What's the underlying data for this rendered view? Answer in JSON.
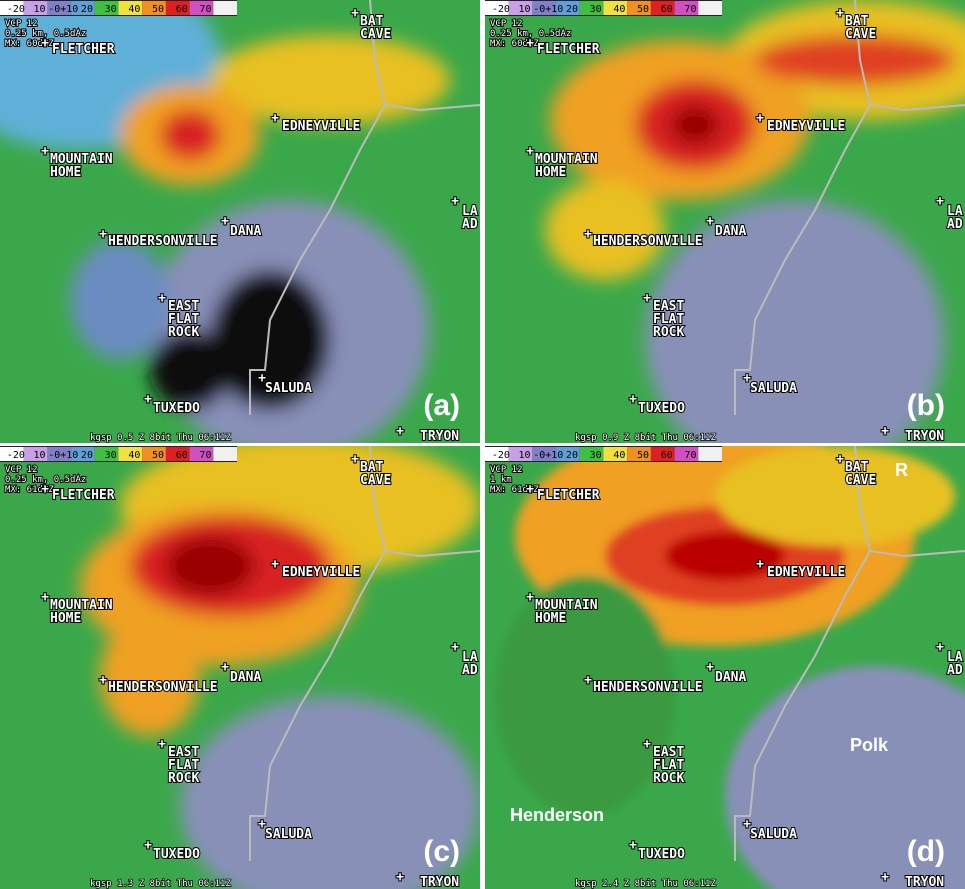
{
  "colorbar": [
    "-20",
    "10",
    "-0+10",
    "20",
    "30",
    "40",
    "50",
    "60",
    "70"
  ],
  "towns": [
    {
      "lines": [
        "FLETCHER"
      ]
    },
    {
      "lines": [
        "BAT",
        "CAVE"
      ]
    },
    {
      "lines": [
        "EDNEYVILLE"
      ]
    },
    {
      "lines": [
        "MOUNTAIN",
        "HOME"
      ]
    },
    {
      "lines": [
        "HENDERSONVILLE"
      ]
    },
    {
      "lines": [
        "DANA"
      ]
    },
    {
      "lines": [
        "EAST",
        "FLAT",
        "ROCK"
      ]
    },
    {
      "lines": [
        "SALUDA"
      ]
    },
    {
      "lines": [
        "TUXEDO"
      ]
    },
    {
      "lines": [
        "TRYON"
      ]
    },
    {
      "lines": [
        "LA",
        "AD"
      ]
    }
  ],
  "panels": [
    {
      "label": "(a)",
      "header": [
        "VCP 12",
        "0.25 km, 0.5dAz",
        "MX: 60dBZ"
      ],
      "footer": "kgsp 0.5 Z  8bit Thu 06:11Z",
      "counties": []
    },
    {
      "label": "(b)",
      "header": [
        "VCP 12",
        "0.25 km, 0.5dAz",
        "MX: 60dBZ"
      ],
      "footer": "kgsp 0.9 Z  8bit Thu 06:11Z",
      "counties": []
    },
    {
      "label": "(c)",
      "header": [
        "VCP 12",
        "0.25 km, 0.5dAz",
        "MX: 61dBZ"
      ],
      "footer": "kgsp 1.3 Z  8bit Thu 06:11Z",
      "counties": []
    },
    {
      "label": "(d)",
      "header": [
        "VCP 12",
        "1 km",
        "MX: 61dBZ"
      ],
      "footer": "kgsp 2.4 Z  8bit Thu 06:11Z",
      "counties": [
        "Henderson",
        "Polk",
        "R"
      ]
    }
  ]
}
